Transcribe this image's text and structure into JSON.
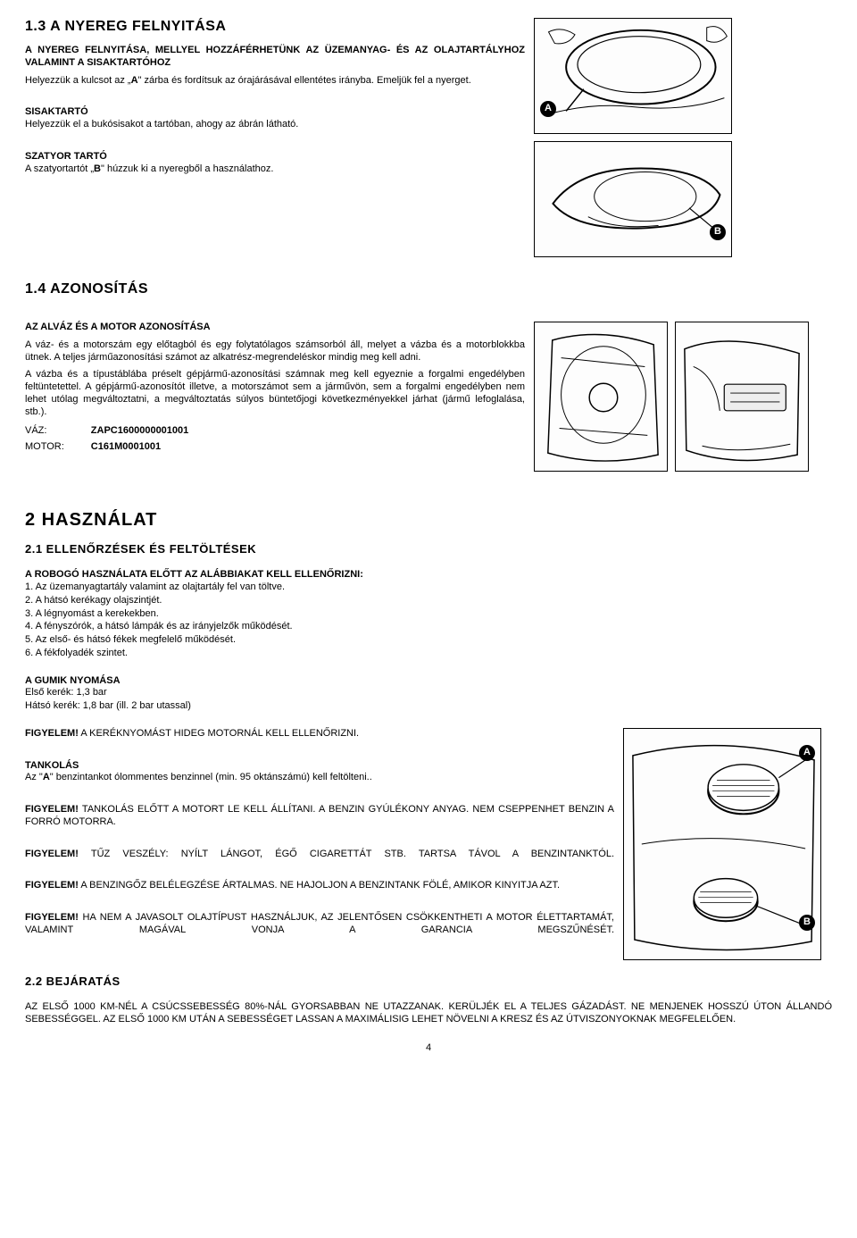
{
  "s13": {
    "title": "1.3 A NYEREG FELNYITÁSA",
    "intro_bold": "A NYEREG FELNYITÁSA, MELLYEL HOZZÁFÉRHETÜNK AZ ÜZEMANYAG- ÉS AZ OLAJTARTÁLYHOZ VALAMINT A SISAKTARTÓHOZ",
    "p1a": "Helyezzük a kulcsot az „",
    "p1b": "A",
    "p1c": "\" zárba és fordítsuk az órajárásával ellentétes irányba. Emeljük fel a nyerget.",
    "h_sisak": "SISAKTARTÓ",
    "p_sisak": "Helyezzük el a bukósisakot a tartóban, ahogy az ábrán látható.",
    "h_szatyor": "SZATYOR TARTÓ",
    "p_szatyor_a": "A szatyortartót „",
    "p_szatyor_b": "B",
    "p_szatyor_c": "\" húzzuk ki a nyeregből a használathoz."
  },
  "s14": {
    "title": "1.4 AZONOSÍTÁS",
    "h_sub": "AZ ALVÁZ ÉS A MOTOR AZONOSÍTÁSA",
    "p1": "A váz- és a motorszám egy előtagból és egy folytatólagos számsorból áll, melyet a vázba és a motorblokkba ütnek. A teljes járműazonosítási számot az alkatrész-megrendeléskor mindig meg kell adni.",
    "p2": "A vázba és a típustáblába préselt gépjármű-azonosítási számnak meg kell egyeznie a forgalmi engedélyben feltüntetettel. A gépjármű-azonosítót illetve, a motorszámot sem a járművön, sem a forgalmi engedélyben nem lehet utólag megváltoztatni, a megváltoztatás súlyos büntetőjogi következményekkel járhat (jármű lefoglalása, stb.).",
    "vaz_label": "VÁZ:",
    "vaz_code": "ZAPC1600000001001",
    "motor_label": "MOTOR:",
    "motor_code": "C161M0001001"
  },
  "s2": {
    "title": "2 HASZNÁLAT"
  },
  "s21": {
    "title": "2.1 ELLENŐRZÉSEK ÉS FELTÖLTÉSEK",
    "h_list": "A ROBOGÓ HASZNÁLATA ELŐTT AZ ALÁBBIAKAT KELL ELLENŐRIZNI:",
    "items": [
      "1. Az üzemanyagtartály valamint az olajtartály fel van töltve.",
      "2. A hátsó kerékagy olajszintjét.",
      "3. A légnyomást a kerekekben.",
      "4. A fényszórók, a hátsó lámpák és az irányjelzők működését.",
      "5. Az első- és hátsó fékek megfelelő működését.",
      "6. A fékfolyadék szintet."
    ],
    "h_gumi": "A GUMIK NYOMÁSA",
    "gumi1": "Első kerék: 1,3 bar",
    "gumi2": "Hátsó kerék: 1,8 bar (ill. 2 bar utassal)",
    "fig1a": "FIGYELEM!",
    "fig1b": " A KERÉKNYOMÁST HIDEG MOTORNÁL KELL ELLENŐRIZNI.",
    "h_tank": "TANKOLÁS",
    "tank_p": "Az \"A\" benzintankot ólommentes benzinnel (min. 95 oktánszámú) kell feltölteni..",
    "fig2a": "FIGYELEM!",
    "fig2b": " TANKOLÁS ELŐTT A MOTORT LE KELL ÁLLÍTANI. A BENZIN GYÚLÉKONY ANYAG. NEM CSEPPENHET BENZIN A FORRÓ MOTORRA.",
    "fig3a": "FIGYELEM!",
    "fig3b": " TŰZ VESZÉLY: NYÍLT LÁNGOT, ÉGŐ CIGARETTÁT STB. TARTSA TÁVOL A BENZINTANKTÓL.",
    "fig4a": "FIGYELEM!",
    "fig4b": " A BENZINGŐZ BELÉLEGZÉSE ÁRTALMAS. NE HAJOLJON A BENZINTANK FÖLÉ, AMIKOR KINYITJA AZT.",
    "fig5a": "FIGYELEM!",
    "fig5b": " HA NEM A JAVASOLT OLAJTÍPUST HASZNÁLJUK, AZ JELENTŐSEN CSÖKKENTHETI A MOTOR ÉLETTARTAMÁT, VALAMINT MAGÁVAL VONJA A GARANCIA MEGSZŰNÉSÉT."
  },
  "s22": {
    "title": "2.2 BEJÁRATÁS",
    "p": "AZ ELSŐ 1000 KM-NÉL A CSÚCSSEBESSÉG 80%-NÁL GYORSABBAN NE UTAZZANAK. KERÜLJÉK EL A TELJES GÁZADÁST. NE MENJENEK HOSSZÚ ÚTON ÁLLANDÓ SEBESSÉGGEL. AZ ELSŐ 1000 KM UTÁN A SEBESSÉGET LASSAN A MAXIMÁLISIG LEHET NÖVELNI A KRESZ ÉS AZ ÚTVISZONYOKNAK MEGFELELŐEN."
  },
  "page": "4",
  "labels": {
    "A": "A",
    "B": "B"
  }
}
